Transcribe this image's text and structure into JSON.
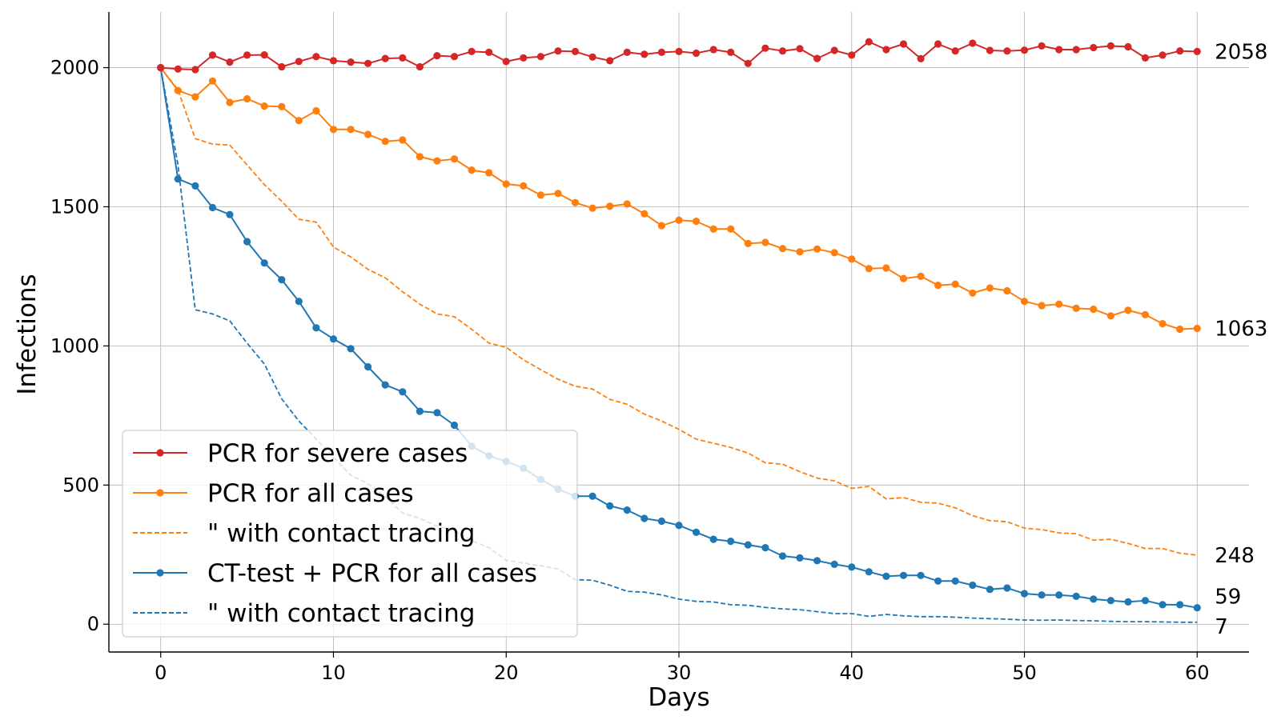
{
  "chart_data": {
    "type": "line",
    "title": "",
    "xlabel": "Days",
    "ylabel": "Infections",
    "xlim": [
      -3,
      63
    ],
    "ylim": [
      -100,
      2200
    ],
    "x_ticks": [
      "0",
      "10",
      "20",
      "30",
      "40",
      "50",
      "60"
    ],
    "y_ticks": [
      "0",
      "500",
      "1000",
      "1500",
      "2000"
    ],
    "grid": true,
    "legend_position": "lower-left",
    "series": [
      {
        "name": "PCR for severe cases",
        "color": "#d62728",
        "style": "solid",
        "markers": true,
        "end_label": "2058",
        "values": [
          2000,
          1995,
          1993,
          2045,
          2020,
          2045,
          2046,
          2003,
          2022,
          2040,
          2025,
          2020,
          2015,
          2033,
          2035,
          2003,
          2043,
          2040,
          2058,
          2055,
          2022,
          2035,
          2040,
          2060,
          2058,
          2038,
          2025,
          2055,
          2048,
          2055,
          2058,
          2052,
          2065,
          2055,
          2015,
          2070,
          2060,
          2068,
          2033,
          2062,
          2045,
          2093,
          2065,
          2085,
          2032,
          2085,
          2060,
          2088,
          2062,
          2060,
          2063,
          2078,
          2065,
          2065,
          2072,
          2078,
          2075,
          2035,
          2045,
          2060,
          2058
        ]
      },
      {
        "name": "PCR for all cases",
        "color": "#ff7f0e",
        "style": "solid",
        "markers": true,
        "end_label": "1063",
        "values": [
          2000,
          1918,
          1895,
          1952,
          1875,
          1888,
          1862,
          1860,
          1810,
          1845,
          1778,
          1778,
          1760,
          1735,
          1740,
          1680,
          1665,
          1672,
          1632,
          1622,
          1582,
          1575,
          1542,
          1548,
          1515,
          1495,
          1502,
          1510,
          1475,
          1432,
          1452,
          1448,
          1420,
          1420,
          1368,
          1372,
          1350,
          1338,
          1348,
          1335,
          1312,
          1278,
          1280,
          1242,
          1250,
          1218,
          1222,
          1190,
          1208,
          1198,
          1160,
          1145,
          1150,
          1135,
          1132,
          1108,
          1128,
          1112,
          1080,
          1060,
          1063
        ]
      },
      {
        "name": "\" with contact tracing",
        "color": "#ff7f0e",
        "style": "dashed",
        "markers": false,
        "end_label": "248",
        "values": [
          2000,
          1920,
          1745,
          1725,
          1722,
          1650,
          1580,
          1520,
          1455,
          1445,
          1355,
          1320,
          1275,
          1245,
          1195,
          1150,
          1115,
          1105,
          1060,
          1010,
          995,
          950,
          915,
          880,
          855,
          845,
          808,
          790,
          755,
          730,
          700,
          665,
          650,
          635,
          615,
          580,
          575,
          548,
          525,
          515,
          488,
          495,
          450,
          455,
          438,
          435,
          418,
          390,
          372,
          368,
          345,
          340,
          328,
          325,
          302,
          305,
          290,
          272,
          272,
          255,
          248
        ]
      },
      {
        "name": "CT-test + PCR for all cases",
        "color": "#1f77b4",
        "style": "solid",
        "markers": true,
        "end_label": "59",
        "values": [
          2000,
          1600,
          1575,
          1497,
          1472,
          1375,
          1298,
          1238,
          1160,
          1065,
          1025,
          990,
          925,
          860,
          835,
          765,
          760,
          715,
          640,
          605,
          585,
          560,
          520,
          485,
          460,
          460,
          425,
          410,
          380,
          370,
          355,
          330,
          305,
          298,
          285,
          275,
          245,
          238,
          228,
          215,
          205,
          188,
          172,
          175,
          175,
          155,
          155,
          140,
          125,
          130,
          110,
          105,
          105,
          100,
          90,
          85,
          80,
          85,
          70,
          70,
          59
        ]
      },
      {
        "name": "\" with contact tracing",
        "color": "#1f77b4",
        "style": "dashed",
        "markers": false,
        "end_label": "7",
        "values": [
          2000,
          1650,
          1130,
          1115,
          1090,
          1010,
          935,
          810,
          730,
          665,
          600,
          535,
          505,
          458,
          400,
          380,
          352,
          338,
          300,
          275,
          230,
          220,
          210,
          198,
          160,
          158,
          140,
          118,
          115,
          105,
          90,
          82,
          80,
          70,
          68,
          60,
          55,
          52,
          45,
          38,
          38,
          28,
          35,
          30,
          27,
          27,
          25,
          22,
          20,
          18,
          15,
          14,
          15,
          13,
          12,
          10,
          9,
          9,
          8,
          7,
          7
        ]
      }
    ]
  }
}
